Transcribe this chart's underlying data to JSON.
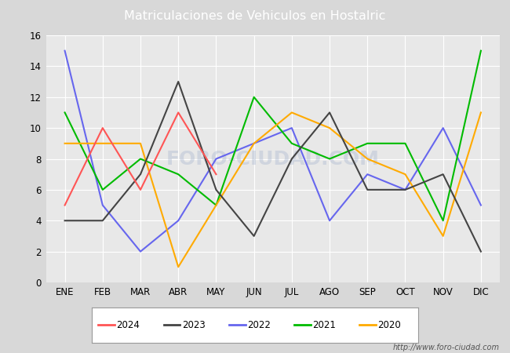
{
  "title": "Matriculaciones de Vehiculos en Hostalric",
  "title_color": "white",
  "title_bg_color": "#5b7fc4",
  "months": [
    "ENE",
    "FEB",
    "MAR",
    "ABR",
    "MAY",
    "JUN",
    "JUL",
    "AGO",
    "SEP",
    "OCT",
    "NOV",
    "DIC"
  ],
  "series": {
    "2024": {
      "values": [
        5,
        10,
        6,
        11,
        7,
        null,
        null,
        null,
        null,
        null,
        null,
        null
      ],
      "color": "#ff5555",
      "label": "2024"
    },
    "2023": {
      "values": [
        4,
        4,
        7,
        13,
        6,
        3,
        8,
        11,
        6,
        6,
        7,
        2
      ],
      "color": "#444444",
      "label": "2023"
    },
    "2022": {
      "values": [
        15,
        5,
        2,
        4,
        8,
        9,
        10,
        4,
        7,
        6,
        10,
        5
      ],
      "color": "#6666ee",
      "label": "2022"
    },
    "2021": {
      "values": [
        11,
        6,
        8,
        7,
        5,
        12,
        9,
        8,
        9,
        9,
        4,
        15
      ],
      "color": "#00bb00",
      "label": "2021"
    },
    "2020": {
      "values": [
        9,
        9,
        9,
        1,
        5,
        9,
        11,
        10,
        8,
        7,
        3,
        11
      ],
      "color": "#ffaa00",
      "label": "2020"
    }
  },
  "ylim": [
    0,
    16
  ],
  "yticks": [
    0,
    2,
    4,
    6,
    8,
    10,
    12,
    14,
    16
  ],
  "outer_bg_color": "#d8d8d8",
  "plot_bg_color": "#e8e8e8",
  "grid_color": "white",
  "url_text": "http://www.foro-ciudad.com",
  "watermark": "FORO-CIUDAD.COM"
}
